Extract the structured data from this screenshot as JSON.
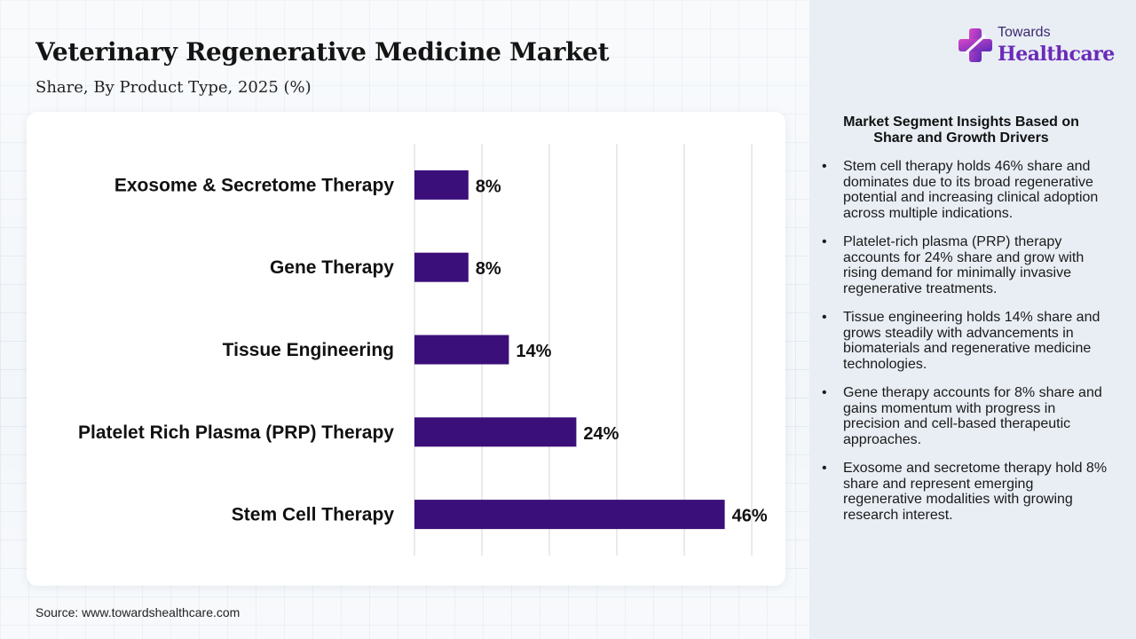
{
  "header": {
    "title": "Veterinary Regenerative Medicine Market",
    "subtitle": "Share, By Product Type, 2025 (%)"
  },
  "logo": {
    "top_text": "Towards",
    "main_text": "Healthcare"
  },
  "chart_data": {
    "type": "bar",
    "orientation": "horizontal",
    "categories": [
      "Exosome & Secretome Therapy",
      "Gene Therapy",
      "Tissue Engineering",
      "Platelet Rich Plasma (PRP) Therapy",
      "Stem Cell Therapy"
    ],
    "values": [
      8,
      8,
      14,
      24,
      46
    ],
    "value_labels": [
      "8%",
      "8%",
      "14%",
      "24%",
      "46%"
    ],
    "xlim": [
      0,
      50
    ],
    "grid": true,
    "bar_color": "#3b0f7a"
  },
  "insights": {
    "heading": "Market Segment Insights Based on Share and Growth Drivers",
    "items": [
      "Stem cell therapy holds 46% share and dominates due to its broad regenerative potential and increasing clinical adoption across multiple indications.",
      "Platelet-rich plasma (PRP) therapy accounts for 24% share and grow with rising demand for minimally invasive regenerative treatments.",
      "Tissue engineering holds 14% share and grows steadily with advancements in biomaterials and regenerative medicine technologies.",
      "Gene therapy accounts for 8% share and gains momentum with progress in precision and cell-based therapeutic approaches.",
      "Exosome and secretome therapy hold 8% share and represent emerging regenerative modalities with growing research interest."
    ]
  },
  "footer": {
    "source": "Source: www.towardshealthcare.com"
  },
  "colors": {
    "bar": "#3b0f7a",
    "logo_purple": "#6a2bb8"
  }
}
